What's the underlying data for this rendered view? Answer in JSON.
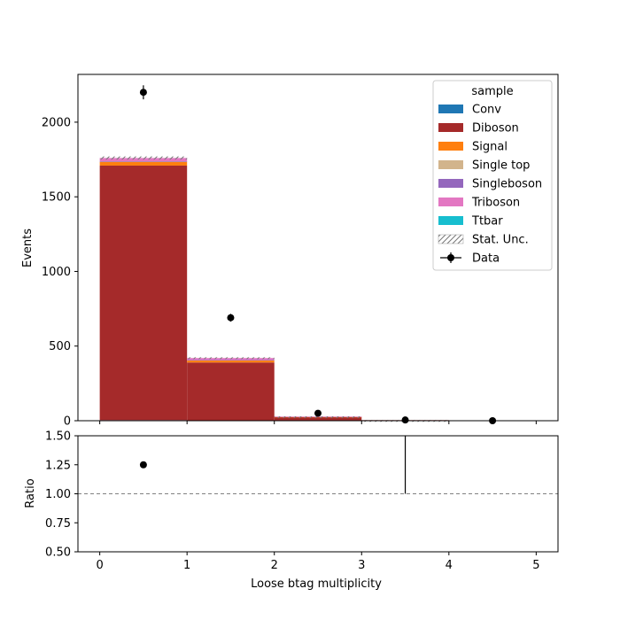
{
  "chart_data": [
    {
      "type": "bar",
      "stacked": true,
      "xlabel": "",
      "ylabel": "Events",
      "xlim": [
        -0.25,
        5.25
      ],
      "ylim": [
        0,
        2320
      ],
      "bins": [
        [
          0,
          1
        ],
        [
          1,
          2
        ],
        [
          2,
          3
        ],
        [
          3,
          4
        ],
        [
          4,
          5
        ]
      ],
      "yticks": [
        0,
        500,
        1000,
        1500,
        2000
      ],
      "xticks": [
        0,
        1,
        2,
        3,
        4,
        5
      ],
      "legend": {
        "title": "sample",
        "placement": "top-right"
      },
      "series": [
        {
          "name": "Conv",
          "color": "#1f77b4",
          "values": [
            4,
            2,
            0,
            0,
            0
          ]
        },
        {
          "name": "Diboson",
          "color": "#a52a2a",
          "values": [
            1705,
            388,
            24,
            4,
            0
          ]
        },
        {
          "name": "Signal",
          "color": "#ff7f0e",
          "values": [
            24,
            14,
            2,
            0,
            0
          ]
        },
        {
          "name": "Single top",
          "color": "#d2b48c",
          "values": [
            3,
            2,
            1,
            0,
            0
          ]
        },
        {
          "name": "Singleboson",
          "color": "#9467bd",
          "values": [
            2,
            1,
            0,
            0,
            0
          ]
        },
        {
          "name": "Triboson",
          "color": "#e377c2",
          "values": [
            22,
            13,
            1,
            0,
            0
          ]
        },
        {
          "name": "Ttbar",
          "color": "#17becf",
          "values": [
            0,
            0,
            0,
            0,
            0
          ]
        }
      ],
      "stat_unc": {
        "name": "Stat. Unc.",
        "hatch": "///"
      },
      "data": {
        "name": "Data",
        "x": [
          0.5,
          1.5,
          2.5,
          3.5,
          4.5
        ],
        "y": [
          2200,
          690,
          50,
          5,
          0
        ],
        "yerr": [
          47,
          26,
          7,
          2,
          0
        ]
      }
    },
    {
      "type": "scatter",
      "xlabel": "Loose btag multiplicity",
      "ylabel": "Ratio",
      "xlim": [
        -0.25,
        5.25
      ],
      "ylim": [
        0.5,
        1.5
      ],
      "yticks": [
        "0.50",
        "0.75",
        "1.00",
        "1.25",
        "1.50"
      ],
      "xticks": [
        "0",
        "1",
        "2",
        "3",
        "4",
        "5"
      ],
      "reference_line": 1.0,
      "points": [
        {
          "x": 0.5,
          "y": 1.25
        }
      ],
      "error_bars": [
        {
          "x": 3.5,
          "low": 1.0,
          "high": 1.5
        }
      ]
    }
  ]
}
